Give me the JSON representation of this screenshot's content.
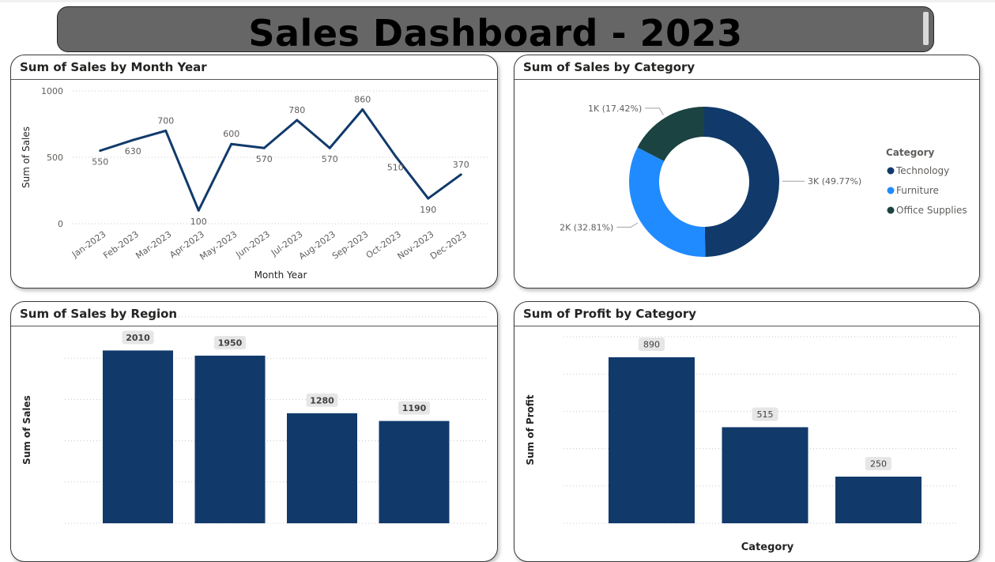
{
  "dashboard": {
    "title": "Sales Dashboard - 2023"
  },
  "colors": {
    "navy": "#113A6B",
    "blue": "#208BFF",
    "dark_green": "#1B4341",
    "banner": "#666666"
  },
  "chart_data": [
    {
      "id": "sales-by-month",
      "type": "line",
      "title": "Sum of Sales by Month Year",
      "xlabel": "Month Year",
      "ylabel": "Sum of Sales",
      "x": [
        "Jan-2023",
        "Feb-2023",
        "Mar-2023",
        "Apr-2023",
        "May-2023",
        "Jun-2023",
        "Jul-2023",
        "Aug-2023",
        "Sep-2023",
        "Oct-2023",
        "Nov-2023",
        "Dec-2023"
      ],
      "values": [
        550,
        630,
        700,
        100,
        600,
        570,
        780,
        570,
        860,
        510,
        190,
        370
      ],
      "ylim": [
        0,
        1000
      ],
      "yticks": [
        "0",
        "500",
        "1000"
      ],
      "grid": true,
      "color": "#113A6B"
    },
    {
      "id": "sales-by-category",
      "type": "pie",
      "title": "Sum of Sales by Category",
      "legend_title": "Category",
      "legend_position": "right",
      "slices": [
        {
          "label": "Technology",
          "value": 49.77,
          "display": "3K (49.77%)",
          "color": "#113A6B"
        },
        {
          "label": "Furniture",
          "value": 32.81,
          "display": "2K (32.81%)",
          "color": "#208BFF"
        },
        {
          "label": "Office Supplies",
          "value": 17.42,
          "display": "1K (17.42%)",
          "color": "#1B4341"
        }
      ]
    },
    {
      "id": "sales-by-region",
      "type": "bar",
      "title": "Sum of Sales by Region",
      "ylabel": "Sum of Sales",
      "values": [
        2010,
        1950,
        1280,
        1190
      ],
      "ylim": [
        0,
        2400
      ],
      "grid": true,
      "color": "#113A6B"
    },
    {
      "id": "profit-by-category",
      "type": "bar",
      "title": "Sum of Profit by Category",
      "xlabel": "Category",
      "ylabel": "Sum of Profit",
      "values": [
        890,
        515,
        250
      ],
      "ylim": [
        0,
        1000
      ],
      "grid": true,
      "color": "#113A6B"
    }
  ]
}
